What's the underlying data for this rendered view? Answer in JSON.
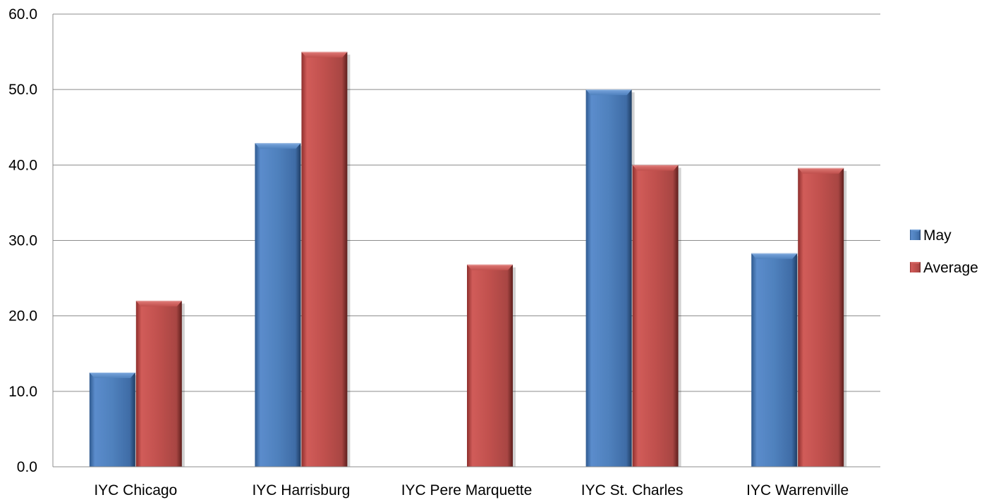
{
  "chart_data": {
    "type": "bar",
    "title": "",
    "xlabel": "",
    "ylabel": "",
    "ylim": [
      0,
      60
    ],
    "yticks": [
      "0.0",
      "10.0",
      "20.0",
      "30.0",
      "40.0",
      "50.0",
      "60.0"
    ],
    "grid": true,
    "legend_position": "right",
    "categories": [
      "IYC Chicago",
      "IYC Harrisburg",
      "IYC Pere Marquette",
      "IYC St. Charles",
      "IYC Warrenville"
    ],
    "series": [
      {
        "name": "May",
        "color": "#4F81BD",
        "values": [
          12.5,
          42.9,
          0,
          50.0,
          28.3
        ]
      },
      {
        "name": "Average",
        "color": "#C0504D",
        "values": [
          22.0,
          55.0,
          26.8,
          40.0,
          39.6
        ]
      }
    ]
  }
}
